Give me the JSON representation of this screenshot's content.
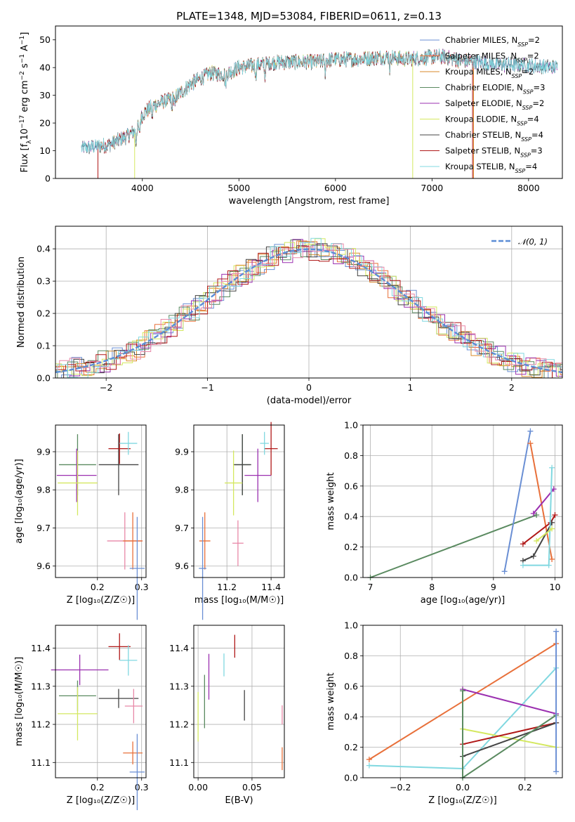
{
  "figure": {
    "title": "PLATE=1348, MJD=53084, FIBERID=0611, z=0.13"
  },
  "colors": {
    "chabrier_miles": "#6a8fd4",
    "salpeter_miles": "#e8703a",
    "kroupa_miles": "#d98a2a",
    "chabrier_elodie": "#5a8a60",
    "salpeter_elodie": "#9b30b0",
    "kroupa_elodie": "#d4e860",
    "chabrier_stelib": "#444444",
    "salpeter_stelib": "#b01818",
    "kroupa_stelib": "#80d8e0",
    "pink": "#e888a8",
    "gauss": "#5b8dd6"
  },
  "chart_data": [
    {
      "id": "spectrum",
      "type": "line",
      "title": "PLATE=1348, MJD=53084, FIBERID=0611, z=0.13",
      "xlabel": "wavelength [Angstrom, rest frame]",
      "ylabel_parts": [
        "Flux [f",
        "λ",
        "10",
        "−17",
        " erg cm",
        "−2",
        " s",
        "−1",
        " A",
        "−1",
        "]"
      ],
      "xlim": [
        3100,
        8350
      ],
      "ylim": [
        0,
        55
      ],
      "xticks": [
        4000,
        5000,
        6000,
        7000,
        8000
      ],
      "yticks": [
        0,
        10,
        20,
        30,
        40,
        50
      ],
      "xtick_labels": [
        "4000",
        "5000",
        "6000",
        "7000",
        "8000"
      ],
      "ytick_labels": [
        "0",
        "10",
        "20",
        "30",
        "40",
        "50"
      ],
      "continuum": {
        "x": [
          3370,
          3500,
          3650,
          3800,
          3850,
          3950,
          4000,
          4100,
          4200,
          4300,
          4400,
          4500,
          4700,
          4860,
          5000,
          5200,
          5400,
          5600,
          5800,
          6000,
          6200,
          6400,
          6560,
          6700,
          6900,
          7100,
          7300,
          7500,
          7700,
          7900,
          8100,
          8300
        ],
        "y": [
          11,
          11.5,
          12,
          14.5,
          15.5,
          18,
          23,
          26,
          27.5,
          28.5,
          31,
          34,
          38,
          37.5,
          40,
          41,
          42,
          42,
          42,
          43,
          43,
          43.5,
          44,
          43,
          43.5,
          44,
          42.5,
          42,
          41,
          41,
          40.5,
          40
        ]
      },
      "noise_amplitude": 2.5,
      "cutoffs": [
        {
          "series": "Salpeter MILES",
          "start": 3540,
          "end": 7430
        },
        {
          "series": "Kroupa MILES",
          "start": 3540,
          "end": 7430
        },
        {
          "series": "Kroupa ELODIE",
          "start": 3920,
          "end": 6800
        },
        {
          "series": "Salpeter STELIB",
          "start": 3540,
          "end": 7420
        }
      ],
      "legend": [
        {
          "name": "Chabrier MILES",
          "n": "2",
          "color": "#6a8fd4"
        },
        {
          "name": "Salpeter MILES",
          "n": "2",
          "color": "#e8703a"
        },
        {
          "name": "Kroupa MILES",
          "n": "2",
          "color": "#d98a2a"
        },
        {
          "name": "Chabrier ELODIE",
          "n": "3",
          "color": "#5a8a60"
        },
        {
          "name": "Salpeter ELODIE",
          "n": "2",
          "color": "#9b30b0"
        },
        {
          "name": "Kroupa ELODIE",
          "n": "4",
          "color": "#d4e860"
        },
        {
          "name": "Chabrier STELIB",
          "n": "4",
          "color": "#444444"
        },
        {
          "name": "Salpeter STELIB",
          "n": "3",
          "color": "#b01818"
        },
        {
          "name": "Kroupa STELIB",
          "n": "4",
          "color": "#80d8e0"
        }
      ],
      "legend_sub": "SSP",
      "legend_placement": "right"
    },
    {
      "id": "residuals",
      "type": "histogram",
      "xlabel": "(data-model)/error",
      "ylabel": "Normed distribution",
      "xlim": [
        -2.5,
        2.5
      ],
      "ylim": [
        0,
        0.47
      ],
      "xticks": [
        -2,
        -1,
        0,
        1,
        2
      ],
      "yticks": [
        0.0,
        0.1,
        0.2,
        0.3,
        0.4
      ],
      "xtick_labels": [
        "−2",
        "−1",
        "0",
        "1",
        "2"
      ],
      "ytick_labels": [
        "0.0",
        "0.1",
        "0.2",
        "0.3",
        "0.4"
      ],
      "bin_width": 0.1,
      "gauss_label": "𝒩(0, 1)",
      "legend_placement": "top-right",
      "grid": true
    },
    {
      "id": "age_vs_Z",
      "type": "errorbar",
      "xlabel": "Z [log₁₀(Z/Z☉)]",
      "ylabel": "age  [log₁₀(age/yr)]",
      "xlim": [
        0.105,
        0.31
      ],
      "ylim": [
        9.57,
        9.97
      ],
      "xticks": [
        0.2,
        0.3
      ],
      "yticks": [
        9.6,
        9.7,
        9.8,
        9.9
      ],
      "xtick_labels": [
        "0.2",
        "0.3"
      ],
      "ytick_labels": [
        "9.6",
        "9.7",
        "9.8",
        "9.9"
      ],
      "points": [
        {
          "x": 0.155,
          "y": 9.866,
          "xerr": 0.042,
          "yerr": 0.08,
          "color": "#5a8a60"
        },
        {
          "x": 0.153,
          "y": 9.838,
          "xerr": 0.045,
          "yerr": 0.07,
          "color": "#9b30b0"
        },
        {
          "x": 0.155,
          "y": 9.818,
          "xerr": 0.045,
          "yerr": 0.085,
          "color": "#d4e860"
        },
        {
          "x": 0.248,
          "y": 9.866,
          "xerr": 0.045,
          "yerr": 0.08,
          "color": "#444444"
        },
        {
          "x": 0.25,
          "y": 9.908,
          "xerr": 0.025,
          "yerr": 0.04,
          "color": "#b01818"
        },
        {
          "x": 0.27,
          "y": 9.922,
          "xerr": 0.02,
          "yerr": 0.03,
          "color": "#80d8e0"
        },
        {
          "x": 0.262,
          "y": 9.666,
          "xerr": 0.04,
          "yerr": 0.075,
          "color": "#e888a8"
        },
        {
          "x": 0.28,
          "y": 9.666,
          "xerr": 0.022,
          "yerr": 0.075,
          "color": "#e8703a"
        },
        {
          "x": 0.29,
          "y": 9.594,
          "xerr": 0.017,
          "yerr": 0.135,
          "color": "#6a8fd4"
        }
      ]
    },
    {
      "id": "age_vs_mass",
      "type": "errorbar",
      "xlabel": "mass [log₁₀(M/M☉)]",
      "ylabel": "",
      "xlim": [
        11.05,
        11.46
      ],
      "ylim": [
        9.57,
        9.97
      ],
      "xticks": [
        11.2,
        11.4
      ],
      "yticks": [
        9.6,
        9.7,
        9.8,
        9.9
      ],
      "xtick_labels": [
        "11.2",
        "11.4"
      ],
      "ytick_labels": [
        "9.6",
        "9.7",
        "9.8",
        "9.9"
      ],
      "points": [
        {
          "x": 11.27,
          "y": 9.866,
          "xerr": 0.035,
          "yerr": 0.08,
          "color": "#5a8a60"
        },
        {
          "x": 11.27,
          "y": 9.866,
          "xerr": 0.04,
          "yerr": 0.08,
          "color": "#444444"
        },
        {
          "x": 11.34,
          "y": 9.838,
          "xerr": 0.06,
          "yerr": 0.07,
          "color": "#9b30b0"
        },
        {
          "x": 11.23,
          "y": 9.818,
          "xerr": 0.04,
          "yerr": 0.085,
          "color": "#d4e860"
        },
        {
          "x": 11.4,
          "y": 9.908,
          "xerr": 0.03,
          "yerr": 0.07,
          "color": "#b01818"
        },
        {
          "x": 11.37,
          "y": 9.922,
          "xerr": 0.02,
          "yerr": 0.03,
          "color": "#80d8e0"
        },
        {
          "x": 11.25,
          "y": 9.66,
          "xerr": 0.025,
          "yerr": 0.06,
          "color": "#e888a8"
        },
        {
          "x": 11.1,
          "y": 9.666,
          "xerr": 0.025,
          "yerr": 0.075,
          "color": "#e8703a"
        },
        {
          "x": 11.09,
          "y": 9.594,
          "xerr": 0.017,
          "yerr": 0.135,
          "color": "#6a8fd4"
        }
      ]
    },
    {
      "id": "weight_vs_age",
      "type": "line",
      "xlabel": "age  [log₁₀(age/yr)]",
      "ylabel": "mass weight",
      "xlim": [
        6.88,
        10.12
      ],
      "ylim": [
        0,
        1.0
      ],
      "xticks": [
        7,
        8,
        9,
        10
      ],
      "yticks": [
        0.0,
        0.2,
        0.4,
        0.6,
        0.8,
        1.0
      ],
      "xtick_labels": [
        "7",
        "8",
        "9",
        "10"
      ],
      "ytick_labels": [
        "0.0",
        "0.2",
        "0.4",
        "0.6",
        "0.8",
        "1.0"
      ],
      "series": [
        {
          "color": "#5a8a60",
          "x": [
            7.0,
            9.7
          ],
          "y": [
            0.0,
            0.41
          ]
        },
        {
          "color": "#6a8fd4",
          "x": [
            9.18,
            9.6
          ],
          "y": [
            0.04,
            0.96
          ]
        },
        {
          "color": "#e8703a",
          "x": [
            9.6,
            9.95
          ],
          "y": [
            0.88,
            0.12
          ]
        },
        {
          "color": "#9b30b0",
          "x": [
            9.65,
            9.98
          ],
          "y": [
            0.42,
            0.58
          ]
        },
        {
          "color": "#b01818",
          "x": [
            9.48,
            9.93,
            10.0
          ],
          "y": [
            0.22,
            0.36,
            0.41
          ]
        },
        {
          "color": "#444444",
          "x": [
            9.48,
            9.65,
            9.95
          ],
          "y": [
            0.11,
            0.14,
            0.36
          ]
        },
        {
          "color": "#80d8e0",
          "x": [
            9.48,
            9.9,
            9.95
          ],
          "y": [
            0.08,
            0.08,
            0.72
          ]
        },
        {
          "color": "#d4e860",
          "x": [
            9.7,
            9.95
          ],
          "y": [
            0.24,
            0.32
          ]
        }
      ]
    },
    {
      "id": "mass_vs_Z",
      "type": "errorbar",
      "xlabel": "Z [log₁₀(Z/Z☉)]",
      "ylabel": "mass [log₁₀(M/M☉)]",
      "xlim": [
        0.105,
        0.31
      ],
      "ylim": [
        11.06,
        11.46
      ],
      "xticks": [
        0.2,
        0.3
      ],
      "yticks": [
        11.1,
        11.2,
        11.3,
        11.4
      ],
      "xtick_labels": [
        "0.2",
        "0.3"
      ],
      "ytick_labels": [
        "11.1",
        "11.2",
        "11.3",
        "11.4"
      ],
      "points": [
        {
          "x": 0.155,
          "y": 11.275,
          "xerr": 0.042,
          "yerr": 0.04,
          "color": "#5a8a60"
        },
        {
          "x": 0.16,
          "y": 11.343,
          "xerr": 0.065,
          "yerr": 0.04,
          "color": "#9b30b0"
        },
        {
          "x": 0.155,
          "y": 11.228,
          "xerr": 0.045,
          "yerr": 0.07,
          "color": "#d4e860"
        },
        {
          "x": 0.248,
          "y": 11.268,
          "xerr": 0.045,
          "yerr": 0.025,
          "color": "#444444"
        },
        {
          "x": 0.25,
          "y": 11.404,
          "xerr": 0.025,
          "yerr": 0.035,
          "color": "#b01818"
        },
        {
          "x": 0.27,
          "y": 11.368,
          "xerr": 0.02,
          "yerr": 0.04,
          "color": "#80d8e0"
        },
        {
          "x": 0.282,
          "y": 11.248,
          "xerr": 0.02,
          "yerr": 0.045,
          "color": "#e888a8"
        },
        {
          "x": 0.28,
          "y": 11.125,
          "xerr": 0.022,
          "yerr": 0.03,
          "color": "#e8703a"
        },
        {
          "x": 0.29,
          "y": 11.075,
          "xerr": 0.017,
          "yerr": 0.1,
          "color": "#6a8fd4"
        }
      ]
    },
    {
      "id": "mass_vs_ebv",
      "type": "errorbar",
      "xlabel": "E(B-V)",
      "ylabel": "",
      "xlim": [
        -0.004,
        0.08
      ],
      "ylim": [
        11.06,
        11.46
      ],
      "xticks": [
        0.0,
        0.05
      ],
      "yticks": [
        11.1,
        11.2,
        11.3,
        11.4
      ],
      "xtick_labels": [
        "0.00",
        "0.05"
      ],
      "ytick_labels": [
        "11.1",
        "11.2",
        "11.3",
        "11.4"
      ],
      "points": [
        {
          "x": 0.0,
          "y": 11.22,
          "xerr": 0,
          "yerr": 0.065,
          "color": "#d4e860"
        },
        {
          "x": 0.006,
          "y": 11.26,
          "xerr": 0,
          "yerr": 0.07,
          "color": "#5a8a60"
        },
        {
          "x": 0.01,
          "y": 11.325,
          "xerr": 0,
          "yerr": 0.06,
          "color": "#9b30b0"
        },
        {
          "x": 0.024,
          "y": 11.356,
          "xerr": 0,
          "yerr": 0.03,
          "color": "#80d8e0"
        },
        {
          "x": 0.034,
          "y": 11.405,
          "xerr": 0,
          "yerr": 0.03,
          "color": "#b01818"
        },
        {
          "x": 0.043,
          "y": 11.25,
          "xerr": 0,
          "yerr": 0.04,
          "color": "#444444"
        },
        {
          "x": 0.078,
          "y": 11.225,
          "xerr": 0,
          "yerr": 0.025,
          "color": "#e888a8"
        },
        {
          "x": 0.078,
          "y": 11.11,
          "xerr": 0,
          "yerr": 0.03,
          "color": "#e8703a"
        }
      ]
    },
    {
      "id": "weight_vs_Z",
      "type": "line",
      "xlabel": "Z [log₁₀(Z/Z☉)]",
      "ylabel": "mass weight",
      "xlim": [
        -0.32,
        0.32
      ],
      "ylim": [
        0,
        1.0
      ],
      "xticks": [
        -0.2,
        0.0,
        0.2
      ],
      "yticks": [
        0.0,
        0.2,
        0.4,
        0.6,
        0.8,
        1.0
      ],
      "xtick_labels": [
        "−0.2",
        "0.0",
        "0.2"
      ],
      "ytick_labels": [
        "0.0",
        "0.2",
        "0.4",
        "0.6",
        "0.8",
        "1.0"
      ],
      "series": [
        {
          "color": "#e8703a",
          "x": [
            -0.3,
            0.3
          ],
          "y": [
            0.12,
            0.88
          ]
        },
        {
          "color": "#80d8e0",
          "x": [
            -0.3,
            0.0,
            0.3
          ],
          "y": [
            0.08,
            0.06,
            0.72
          ]
        },
        {
          "color": "#9b30b0",
          "x": [
            0.0,
            0.3
          ],
          "y": [
            0.58,
            0.42
          ]
        },
        {
          "color": "#d4e860",
          "x": [
            0.0,
            0.3
          ],
          "y": [
            0.32,
            0.2
          ]
        },
        {
          "color": "#b01818",
          "x": [
            0.0,
            0.3
          ],
          "y": [
            0.22,
            0.36
          ]
        },
        {
          "color": "#444444",
          "x": [
            0.0,
            0.3
          ],
          "y": [
            0.14,
            0.36
          ]
        },
        {
          "color": "#5a8a60",
          "x": [
            0.0,
            0.0,
            0.3
          ],
          "y": [
            0.57,
            0.0,
            0.41
          ]
        },
        {
          "color": "#6a8fd4",
          "x": [
            0.3,
            0.3
          ],
          "y": [
            0.04,
            0.96
          ]
        }
      ]
    }
  ]
}
